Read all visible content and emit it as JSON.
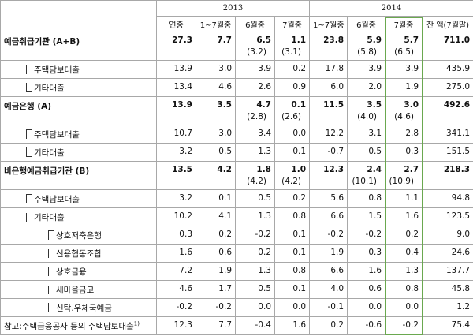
{
  "header": {
    "years": [
      "2013",
      "2014"
    ],
    "columns": [
      "연중",
      "1~7월중",
      "6월중",
      "7월중",
      "1~7월중",
      "6월중",
      "7월중",
      "잔 액(7월말)"
    ]
  },
  "rows": [
    {
      "label": "예금취급기관 (A+B)",
      "level": 0,
      "bold": true,
      "values": [
        "27.3",
        "7.7",
        "6.5",
        "1.1",
        "23.8",
        "5.9",
        "5.7",
        "711.0"
      ],
      "sub": [
        null,
        null,
        "(3.2)",
        "(3.1)",
        null,
        "(5.8)",
        "(6.5)",
        null
      ]
    },
    {
      "label": "주택담보대출",
      "level": 1,
      "bold": false,
      "values": [
        "13.9",
        "3.0",
        "3.9",
        "0.2",
        "17.8",
        "3.9",
        "3.9",
        "435.9"
      ]
    },
    {
      "label": "기타대출",
      "level": 1,
      "bold": false,
      "values": [
        "13.4",
        "4.6",
        "2.6",
        "0.9",
        "6.0",
        "2.0",
        "1.9",
        "275.0"
      ]
    },
    {
      "label": "예금은행 (A)",
      "level": 0,
      "bold": true,
      "values": [
        "13.9",
        "3.5",
        "4.7",
        "0.1",
        "11.5",
        "3.5",
        "3.0",
        "492.6"
      ],
      "sub": [
        null,
        null,
        "(2.8)",
        "(2.6)",
        null,
        "(4.0)",
        "(4.6)",
        null
      ]
    },
    {
      "label": "주택담보대출",
      "level": 1,
      "bold": false,
      "values": [
        "10.7",
        "3.0",
        "3.4",
        "0.0",
        "12.2",
        "3.1",
        "2.8",
        "341.1"
      ]
    },
    {
      "label": "기타대출",
      "level": 1,
      "bold": false,
      "values": [
        "3.2",
        "0.5",
        "1.3",
        "0.1",
        "-0.7",
        "0.5",
        "0.3",
        "151.5"
      ]
    },
    {
      "label": "비은행예금취급기관 (B)",
      "level": 0,
      "bold": true,
      "values": [
        "13.5",
        "4.2",
        "1.8",
        "1.0",
        "12.3",
        "2.4",
        "2.7",
        "218.3"
      ],
      "sub": [
        null,
        null,
        "(4.2)",
        "(4.2)",
        null,
        "(10.1)",
        "(10.9)",
        null
      ]
    },
    {
      "label": "주택담보대출",
      "level": 1,
      "bold": false,
      "values": [
        "3.2",
        "0.1",
        "0.5",
        "0.2",
        "5.6",
        "0.8",
        "1.1",
        "94.8"
      ]
    },
    {
      "label": "기타대출",
      "level": 1,
      "bold": false,
      "values": [
        "10.2",
        "4.1",
        "1.3",
        "0.8",
        "6.6",
        "1.5",
        "1.6",
        "123.5"
      ]
    },
    {
      "label": "상호저축은행",
      "level": 2,
      "bold": false,
      "values": [
        "0.3",
        "0.2",
        "-0.2",
        "0.1",
        "-0.2",
        "-0.2",
        "0.2",
        "9.0"
      ]
    },
    {
      "label": "신용협동조합",
      "level": 2,
      "bold": false,
      "values": [
        "1.6",
        "0.6",
        "0.2",
        "0.1",
        "1.9",
        "0.3",
        "0.4",
        "24.6"
      ]
    },
    {
      "label": "상호금융",
      "level": 2,
      "bold": false,
      "values": [
        "7.2",
        "1.9",
        "1.3",
        "0.8",
        "6.6",
        "1.6",
        "1.3",
        "137.7"
      ]
    },
    {
      "label": "새마을금고",
      "level": 2,
      "bold": false,
      "values": [
        "4.6",
        "1.7",
        "0.5",
        "0.1",
        "4.0",
        "0.6",
        "0.8",
        "45.8"
      ]
    },
    {
      "label": "신탁.우체국예금",
      "level": 2,
      "bold": false,
      "values": [
        "-0.2",
        "-0.2",
        "0.0",
        "0.0",
        "-0.1",
        "0.0",
        "0.0",
        "1.2"
      ]
    },
    {
      "label": "참고:주택금융공사 등의 주택담보대출",
      "note": "1)",
      "level": 0,
      "bold": false,
      "values": [
        "12.3",
        "7.7",
        "-0.4",
        "1.6",
        "0.2",
        "-0.6",
        "-0.2",
        "75.4"
      ]
    }
  ],
  "highlight_column": 6
}
